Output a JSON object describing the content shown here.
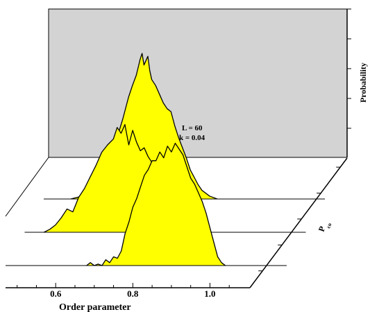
{
  "chart_data": {
    "type": "area",
    "chart_style": "3d-waterfall",
    "xlabel": "Order parameter",
    "ylabel": "Probability",
    "zlabel": "P",
    "zlabel_sub": "co",
    "x_ticks": [
      "0.6",
      "0.8",
      "1.0"
    ],
    "xlim": [
      0.47,
      1.1
    ],
    "annotation": [
      "L = 60",
      "k = 0.04"
    ],
    "grid": false,
    "colors": {
      "fill": "#ffff00",
      "back_wall": "#d3d3d3",
      "line": "#000000"
    },
    "series": [
      {
        "x": [
          0.54,
          0.555,
          0.57,
          0.585,
          0.6,
          0.615,
          0.63,
          0.645,
          0.66,
          0.675,
          0.69,
          0.7,
          0.71,
          0.72,
          0.725,
          0.73,
          0.74,
          0.745,
          0.75,
          0.76,
          0.77,
          0.78,
          0.79,
          0.8,
          0.81,
          0.82,
          0.83,
          0.84,
          0.85,
          0.86,
          0.87,
          0.88,
          0.9,
          0.92
        ],
        "values": [
          0,
          0.01,
          0.02,
          0.04,
          0.08,
          0.14,
          0.2,
          0.3,
          0.42,
          0.55,
          0.7,
          0.78,
          0.85,
          0.96,
          1.0,
          0.92,
          0.98,
          0.88,
          0.82,
          0.78,
          0.72,
          0.66,
          0.62,
          0.6,
          0.5,
          0.42,
          0.35,
          0.28,
          0.2,
          0.15,
          0.1,
          0.06,
          0.02,
          0
        ]
      },
      {
        "x": [
          0.52,
          0.535,
          0.55,
          0.565,
          0.58,
          0.595,
          0.61,
          0.625,
          0.64,
          0.655,
          0.67,
          0.685,
          0.7,
          0.71,
          0.72,
          0.73,
          0.74,
          0.75,
          0.76,
          0.77,
          0.78,
          0.79,
          0.8,
          0.81,
          0.82,
          0.83,
          0.84,
          0.855,
          0.87,
          0.885,
          0.9
        ],
        "values": [
          0,
          0.02,
          0.05,
          0.1,
          0.16,
          0.14,
          0.24,
          0.3,
          0.38,
          0.46,
          0.55,
          0.6,
          0.64,
          0.72,
          0.68,
          0.74,
          0.6,
          0.7,
          0.62,
          0.56,
          0.58,
          0.52,
          0.48,
          0.4,
          0.42,
          0.34,
          0.26,
          0.18,
          0.1,
          0.04,
          0
        ]
      },
      {
        "x": [
          0.68,
          0.69,
          0.7,
          0.71,
          0.72,
          0.73,
          0.74,
          0.75,
          0.76,
          0.77,
          0.78,
          0.79,
          0.8,
          0.81,
          0.82,
          0.83,
          0.84,
          0.85,
          0.86,
          0.87,
          0.88,
          0.89,
          0.9,
          0.91,
          0.92,
          0.93,
          0.94,
          0.95,
          0.96,
          0.97,
          0.98,
          0.99,
          1.0,
          1.01,
          1.02,
          1.03,
          1.04
        ],
        "values": [
          0,
          0.02,
          0.0,
          0.01,
          0.0,
          0.04,
          0.02,
          0.06,
          0.05,
          0.1,
          0.22,
          0.3,
          0.4,
          0.46,
          0.54,
          0.62,
          0.66,
          0.72,
          0.72,
          0.78,
          0.74,
          0.82,
          0.78,
          0.84,
          0.8,
          0.76,
          0.68,
          0.6,
          0.56,
          0.5,
          0.44,
          0.36,
          0.26,
          0.16,
          0.06,
          0.02,
          0
        ]
      }
    ]
  }
}
